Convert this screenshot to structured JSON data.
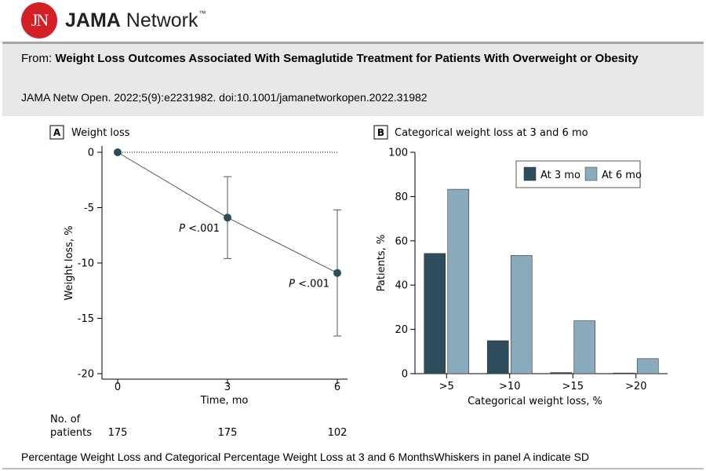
{
  "header": {
    "logo_mark": "JN",
    "brand_bold": "JAMA",
    "brand_rest": " Network",
    "brand_tm": "™"
  },
  "article": {
    "from_label": "From: ",
    "title": "Weight Loss Outcomes Associated With Semaglutide Treatment for Patients With Overweight or Obesity",
    "citation": "JAMA Netw Open. 2022;5(9):e2231982. doi:10.1001/jamanetworkopen.2022.31982"
  },
  "caption": "Percentage Weight Loss and Categorical Percentage Weight Loss at 3 and 6 MonthsWhiskers in panel A indicate SD",
  "colors": {
    "marker": "#2e4d5c",
    "bar_3mo": "#2e4d5c",
    "bar_6mo": "#8aabbb",
    "logo": "#d31f26"
  },
  "chart_data": [
    {
      "type": "line",
      "panel_letter": "A",
      "title": "Weight loss",
      "xlabel": "Time, mo",
      "ylabel": "Weight loss, %",
      "x": [
        0,
        3,
        6
      ],
      "y": [
        0,
        -5.9,
        -10.9
      ],
      "error_low": [
        0,
        -9.6,
        -16.6
      ],
      "error_high": [
        0,
        -2.2,
        -5.2
      ],
      "xticks": [
        "0",
        "3",
        "6"
      ],
      "yticks": [
        "0",
        "-5",
        "-10",
        "-15",
        "-20"
      ],
      "ylim": [
        -20,
        0
      ],
      "reference_line": 0,
      "annotations": [
        {
          "x": 3,
          "prefix": "P",
          "text": " <.001"
        },
        {
          "x": 6,
          "prefix": "P",
          "text": " <.001"
        }
      ],
      "n_label_1": "No. of",
      "n_label_2": "patients",
      "n_at_risk": [
        "175",
        "175",
        "102"
      ]
    },
    {
      "type": "bar",
      "panel_letter": "B",
      "title": "Categorical weight loss at 3 and 6 mo",
      "xlabel": "Categorical weight loss, %",
      "ylabel": "Patients, %",
      "categories": [
        ">5",
        ">10",
        ">15",
        ">20"
      ],
      "ylim": [
        0,
        100
      ],
      "yticks": [
        "0",
        "20",
        "40",
        "60",
        "80",
        "100"
      ],
      "legend_position": "top-right",
      "series": [
        {
          "name": "At 3 mo",
          "values": [
            54.3,
            14.9,
            0.5,
            0.3
          ]
        },
        {
          "name": "At 6 mo",
          "values": [
            83.3,
            53.4,
            23.9,
            6.8
          ]
        }
      ]
    }
  ]
}
